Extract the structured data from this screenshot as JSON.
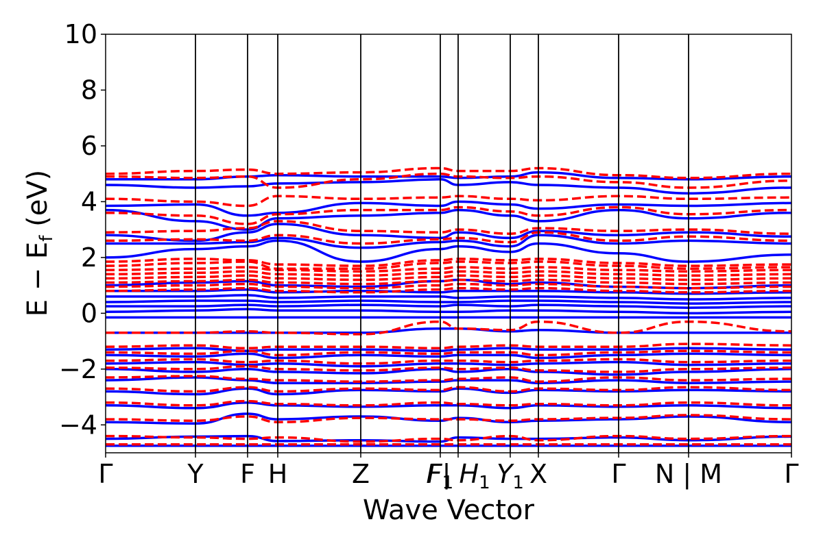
{
  "chart_data": {
    "type": "line",
    "title": "",
    "xlabel": "Wave Vector",
    "ylabel": "E − E_f (eV)",
    "ylabel_parts": {
      "main": "E − E",
      "sub": "f",
      "unit": " (eV)"
    },
    "ylim": [
      -5,
      10
    ],
    "yticks": [
      -4,
      -2,
      0,
      2,
      4,
      6,
      8,
      10
    ],
    "ytick_labels": [
      "−4",
      "−2",
      "0",
      "2",
      "4",
      "6",
      "8",
      "10"
    ],
    "xlim": [
      0,
      1
    ],
    "high_symmetry_points": [
      {
        "pos": 0.0,
        "label": "Γ"
      },
      {
        "pos": 0.131,
        "label": "Y"
      },
      {
        "pos": 0.207,
        "label": "F"
      },
      {
        "pos": 0.251,
        "label": "H"
      },
      {
        "pos": 0.372,
        "label": "Z"
      },
      {
        "pos": 0.488,
        "label": "F",
        "sub": "1"
      },
      {
        "pos": 0.514,
        "label": "I | H",
        "sub": "1"
      },
      {
        "pos": 0.59,
        "label": "Y",
        "sub": "1"
      },
      {
        "pos": 0.631,
        "label": "X"
      },
      {
        "pos": 0.748,
        "label": "Γ"
      },
      {
        "pos": 0.85,
        "label": "N | M"
      },
      {
        "pos": 1.0,
        "label": "Γ"
      }
    ],
    "grid": false,
    "legend": "none",
    "series_styles": [
      {
        "color": "#0000ff",
        "dash": "solid"
      },
      {
        "color": "#ff0000",
        "dash": "dashed"
      }
    ],
    "series": [
      {
        "color": "#0000ff",
        "style": "solid",
        "bands": [
          [
            -4.75,
            -4.75,
            -4.75,
            -4.75,
            -4.75,
            -4.75,
            -4.75,
            -4.75,
            -4.75,
            -4.75,
            -4.75,
            -4.75,
            -4.75
          ],
          [
            -4.5,
            -4.42,
            -4.4,
            -4.58,
            -4.55,
            -4.6,
            -4.45,
            -4.5,
            -4.5,
            -4.45,
            -4.55,
            -4.42,
            -4.5
          ],
          [
            -3.9,
            -3.95,
            -3.6,
            -3.8,
            -3.7,
            -3.85,
            -3.75,
            -3.9,
            -3.85,
            -3.8,
            -3.7,
            -3.9,
            -3.8
          ],
          [
            -3.3,
            -3.4,
            -3.2,
            -3.3,
            -3.35,
            -3.3,
            -3.3,
            -3.4,
            -3.3,
            -3.35,
            -3.3,
            -3.4,
            -3.3
          ],
          [
            -2.8,
            -2.9,
            -2.7,
            -2.9,
            -2.75,
            -2.8,
            -2.7,
            -2.85,
            -2.75,
            -2.8,
            -2.75,
            -2.8,
            -2.8
          ],
          [
            -2.4,
            -2.3,
            -2.4,
            -2.5,
            -2.5,
            -2.45,
            -2.4,
            -2.4,
            -2.5,
            -2.4,
            -2.5,
            -2.45,
            -2.4
          ],
          [
            -2.0,
            -2.1,
            -2.0,
            -2.1,
            -2.15,
            -2.0,
            -2.1,
            -2.0,
            -2.1,
            -2.2,
            -2.1,
            -2.0,
            -2.0
          ],
          [
            -1.8,
            -1.75,
            -1.85,
            -1.8,
            -1.9,
            -1.8,
            -1.8,
            -1.85,
            -1.8,
            -1.75,
            -1.85,
            -1.8,
            -1.8
          ],
          [
            -1.5,
            -1.55,
            -1.45,
            -1.6,
            -1.5,
            -1.55,
            -1.5,
            -1.5,
            -1.6,
            -1.5,
            -1.45,
            -1.5,
            -1.5
          ],
          [
            -1.3,
            -1.25,
            -1.35,
            -1.3,
            -1.3,
            -1.35,
            -1.3,
            -1.25,
            -1.3,
            -1.3,
            -1.25,
            -1.3,
            -1.3
          ],
          [
            -0.7,
            -0.7,
            -0.7,
            -0.7,
            -0.7,
            -0.55,
            -0.55,
            -0.65,
            -0.6,
            -0.7,
            -0.7,
            -0.7,
            -0.7
          ],
          [
            -0.15,
            -0.15,
            -0.15,
            -0.15,
            -0.15,
            -0.15,
            -0.15,
            -0.15,
            -0.15,
            -0.15,
            -0.15,
            -0.15,
            -0.15
          ],
          [
            0.05,
            0.1,
            0.15,
            0.1,
            0.1,
            0.05,
            0.05,
            0.1,
            0.1,
            0.05,
            0.0,
            0.05,
            0.05
          ],
          [
            0.25,
            0.25,
            0.3,
            0.25,
            0.3,
            0.25,
            0.3,
            0.25,
            0.3,
            0.25,
            0.2,
            0.25,
            0.25
          ],
          [
            0.4,
            0.45,
            0.45,
            0.4,
            0.45,
            0.4,
            0.4,
            0.45,
            0.45,
            0.4,
            0.35,
            0.4,
            0.4
          ],
          [
            0.6,
            0.6,
            0.65,
            0.55,
            0.6,
            0.6,
            0.55,
            0.6,
            0.6,
            0.55,
            0.5,
            0.55,
            0.6
          ],
          [
            0.8,
            0.8,
            0.85,
            0.75,
            0.8,
            0.75,
            0.8,
            0.8,
            0.8,
            0.75,
            0.7,
            0.75,
            0.8
          ],
          [
            1.0,
            1.1,
            1.15,
            1.0,
            0.95,
            1.15,
            1.2,
            1.05,
            1.1,
            0.95,
            0.9,
            1.0,
            1.0
          ],
          [
            2.0,
            2.3,
            2.4,
            2.6,
            1.85,
            2.3,
            2.4,
            2.2,
            2.5,
            2.15,
            1.85,
            2.1,
            2.0
          ],
          [
            2.5,
            2.5,
            2.55,
            2.7,
            2.35,
            2.55,
            2.6,
            2.4,
            2.8,
            2.5,
            2.6,
            2.5,
            2.5
          ],
          [
            2.8,
            2.6,
            2.9,
            3.2,
            2.8,
            2.7,
            2.9,
            2.7,
            2.95,
            2.8,
            2.9,
            2.75,
            2.8
          ],
          [
            3.7,
            3.3,
            3.0,
            3.4,
            3.5,
            3.6,
            3.7,
            3.5,
            3.3,
            3.7,
            3.4,
            3.6,
            3.7
          ],
          [
            3.85,
            3.9,
            3.5,
            3.6,
            3.95,
            3.85,
            4.0,
            3.9,
            3.75,
            3.9,
            3.85,
            3.95,
            3.85
          ],
          [
            4.6,
            4.5,
            4.55,
            4.65,
            4.7,
            4.8,
            4.6,
            4.7,
            4.6,
            4.5,
            4.3,
            4.5,
            4.6
          ],
          [
            4.8,
            4.8,
            4.9,
            4.95,
            4.9,
            4.9,
            4.85,
            4.9,
            5.05,
            4.85,
            4.8,
            4.9,
            4.8
          ]
        ]
      },
      {
        "color": "#ff0000",
        "style": "dashed",
        "bands": [
          [
            -4.7,
            -4.7,
            -4.7,
            -4.7,
            -4.7,
            -4.7,
            -4.7,
            -4.7,
            -4.7,
            -4.7,
            -4.7,
            -4.7,
            -4.7
          ],
          [
            -4.4,
            -4.45,
            -4.5,
            -4.45,
            -4.6,
            -4.5,
            -4.55,
            -4.4,
            -4.55,
            -4.4,
            -4.5,
            -4.4,
            -4.45
          ],
          [
            -3.8,
            -3.85,
            -3.7,
            -3.9,
            -3.75,
            -3.8,
            -3.8,
            -3.85,
            -3.8,
            -3.75,
            -3.65,
            -3.8,
            -3.8
          ],
          [
            -3.2,
            -3.3,
            -3.15,
            -3.25,
            -3.3,
            -3.2,
            -3.25,
            -3.3,
            -3.25,
            -3.3,
            -3.2,
            -3.3,
            -3.2
          ],
          [
            -2.7,
            -2.8,
            -2.65,
            -2.8,
            -2.7,
            -2.75,
            -2.65,
            -2.8,
            -2.7,
            -2.75,
            -2.65,
            -2.75,
            -2.7
          ],
          [
            -2.3,
            -2.25,
            -2.35,
            -2.4,
            -2.45,
            -2.4,
            -2.35,
            -2.3,
            -2.45,
            -2.3,
            -2.4,
            -2.35,
            -2.3
          ],
          [
            -1.95,
            -2.0,
            -1.9,
            -2.0,
            -2.05,
            -1.95,
            -2.0,
            -1.95,
            -2.05,
            -2.1,
            -2.0,
            -1.95,
            -1.95
          ],
          [
            -1.7,
            -1.65,
            -1.75,
            -1.7,
            -1.8,
            -1.7,
            -1.7,
            -1.75,
            -1.7,
            -1.65,
            -1.75,
            -1.7,
            -1.7
          ],
          [
            -1.4,
            -1.45,
            -1.35,
            -1.5,
            -1.4,
            -1.45,
            -1.4,
            -1.4,
            -1.5,
            -1.4,
            -1.35,
            -1.4,
            -1.4
          ],
          [
            -1.2,
            -1.15,
            -1.25,
            -1.2,
            -1.2,
            -1.25,
            -1.2,
            -1.15,
            -1.2,
            -1.2,
            -1.1,
            -1.15,
            -1.2
          ],
          [
            -0.7,
            -0.7,
            -0.65,
            -0.7,
            -0.75,
            -0.3,
            -0.55,
            -0.6,
            -0.3,
            -0.7,
            -0.3,
            -0.65,
            -0.7
          ],
          [
            0.8,
            0.85,
            0.9,
            0.8,
            0.75,
            0.85,
            0.9,
            0.85,
            0.9,
            0.8,
            0.75,
            0.8,
            0.8
          ],
          [
            0.95,
            1.0,
            1.05,
            0.95,
            0.9,
            1.0,
            1.05,
            1.0,
            1.05,
            0.95,
            0.9,
            0.95,
            0.95
          ],
          [
            1.1,
            1.15,
            1.2,
            1.1,
            1.05,
            1.15,
            1.2,
            1.15,
            1.2,
            1.1,
            1.05,
            1.1,
            1.1
          ],
          [
            1.25,
            1.3,
            1.35,
            1.25,
            1.2,
            1.3,
            1.35,
            1.3,
            1.35,
            1.25,
            1.2,
            1.25,
            1.25
          ],
          [
            1.4,
            1.45,
            1.5,
            1.4,
            1.35,
            1.45,
            1.5,
            1.45,
            1.5,
            1.4,
            1.35,
            1.4,
            1.4
          ],
          [
            1.55,
            1.6,
            1.65,
            1.55,
            1.5,
            1.6,
            1.65,
            1.6,
            1.65,
            1.55,
            1.5,
            1.55,
            1.55
          ],
          [
            1.7,
            1.8,
            1.85,
            1.6,
            1.6,
            1.8,
            1.85,
            1.8,
            1.85,
            1.7,
            1.6,
            1.65,
            1.7
          ],
          [
            1.85,
            1.95,
            1.9,
            1.75,
            1.7,
            1.9,
            1.95,
            1.9,
            1.95,
            1.8,
            1.7,
            1.75,
            1.85
          ],
          [
            2.6,
            2.65,
            2.6,
            2.8,
            2.5,
            2.65,
            2.7,
            2.55,
            2.9,
            2.6,
            2.75,
            2.6,
            2.6
          ],
          [
            2.9,
            2.95,
            3.05,
            3.3,
            2.95,
            2.9,
            3.0,
            2.85,
            3.05,
            2.95,
            3.0,
            2.85,
            2.9
          ],
          [
            3.6,
            3.5,
            3.2,
            3.55,
            3.7,
            3.7,
            3.8,
            3.65,
            3.5,
            3.8,
            3.55,
            3.7,
            3.6
          ],
          [
            4.1,
            4.0,
            3.85,
            4.2,
            4.1,
            4.15,
            4.2,
            4.1,
            4.05,
            4.2,
            4.1,
            4.15,
            4.1
          ],
          [
            4.9,
            4.85,
            4.9,
            4.5,
            4.8,
            5.0,
            4.9,
            4.85,
            4.9,
            4.7,
            4.5,
            4.75,
            4.9
          ],
          [
            5.0,
            5.1,
            5.15,
            5.0,
            5.05,
            5.2,
            5.1,
            5.1,
            5.2,
            4.95,
            4.85,
            5.0,
            5.0
          ]
        ]
      }
    ]
  }
}
